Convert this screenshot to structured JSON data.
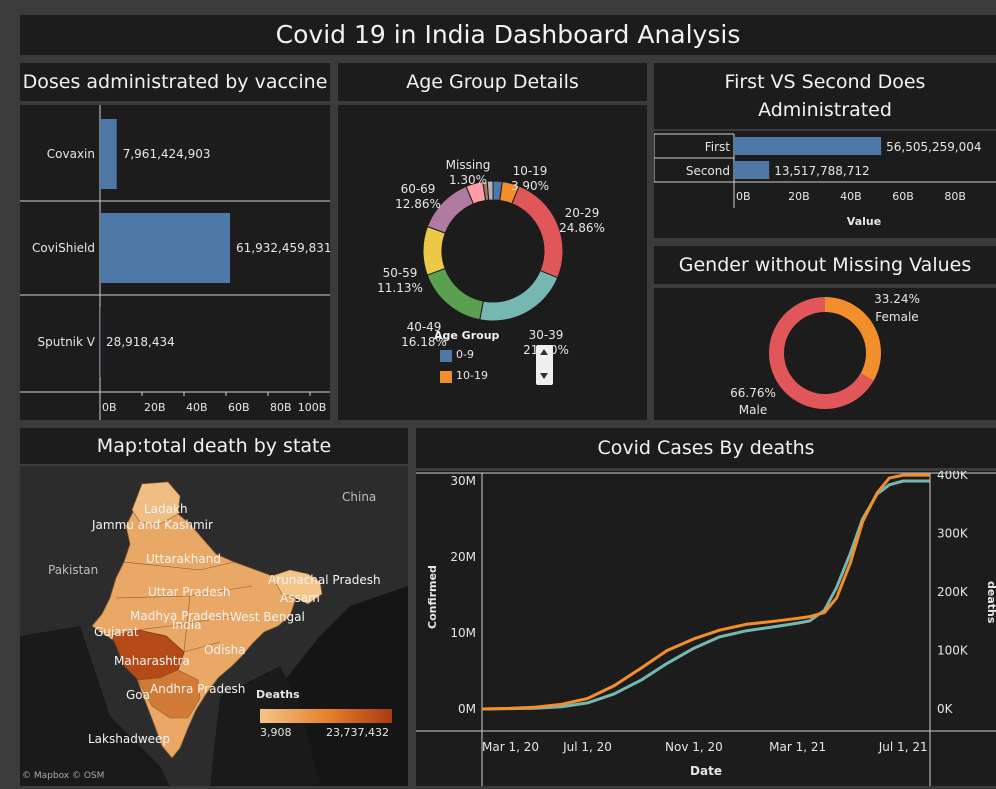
{
  "dashboard": {
    "title": "Covid 19 in India Dashboard Analysis"
  },
  "vaccine_panel": {
    "title": "Doses administrated by vaccine"
  },
  "age_panel": {
    "title": "Age Group Details",
    "legend_title": "Age Group",
    "legend_items": [
      {
        "label": "0-9",
        "color": "#4e79a7"
      },
      {
        "label": "10-19",
        "color": "#f28e2b"
      }
    ]
  },
  "dose_panel": {
    "title_line1": "First VS Second Does",
    "title_line2": "Administrated"
  },
  "gender_panel": {
    "title": "Gender without Missing Values"
  },
  "map_panel": {
    "title": "Map:total death by state",
    "legend_title": "Deaths",
    "legend_min": "3,908",
    "legend_max": "23,737,432",
    "attribution": "© Mapbox © OSM",
    "labels": [
      {
        "key": "china",
        "text": "China"
      },
      {
        "key": "ladakh",
        "text": "Ladakh"
      },
      {
        "key": "jk",
        "text": "Jammu and Kashmir"
      },
      {
        "key": "uttarakhand",
        "text": "Uttarakhand"
      },
      {
        "key": "pakistan",
        "text": "Pakistan"
      },
      {
        "key": "arunachal",
        "text": "Arunachal Pradesh"
      },
      {
        "key": "assam",
        "text": "Assam"
      },
      {
        "key": "up",
        "text": "Uttar Pradesh"
      },
      {
        "key": "mp",
        "text": "Madhya Pradesh"
      },
      {
        "key": "wb",
        "text": "West Bengal"
      },
      {
        "key": "india",
        "text": "India"
      },
      {
        "key": "gujarat",
        "text": "Gujarat"
      },
      {
        "key": "odisha",
        "text": "Odisha"
      },
      {
        "key": "maharashtra",
        "text": "Maharashtra"
      },
      {
        "key": "goa",
        "text": "Goa"
      },
      {
        "key": "ap",
        "text": "Andhra Pradesh"
      },
      {
        "key": "lakshadweep",
        "text": "Lakshadweep"
      }
    ]
  },
  "cases_panel": {
    "title": "Covid Cases By deaths"
  },
  "chart_data": [
    {
      "id": "vaccine",
      "type": "bar",
      "orientation": "horizontal",
      "categories": [
        "Covaxin",
        "CoviShield",
        "Sputnik V"
      ],
      "values": [
        7961424903,
        61932459831,
        28918434
      ],
      "value_labels": [
        "7,961,424,903",
        "61,932,459,831",
        "28,918,434"
      ],
      "xlim": [
        0,
        100000000000
      ],
      "xticks": [
        0,
        20000000000,
        40000000000,
        60000000000,
        80000000000,
        100000000000
      ],
      "xtick_labels": [
        "0B",
        "20B",
        "40B",
        "60B",
        "80B",
        "100B"
      ],
      "color": "#4e79a7"
    },
    {
      "id": "age",
      "type": "pie",
      "donut": true,
      "slices": [
        {
          "label": "0-9",
          "value": 2.1,
          "color": "#4e79a7",
          "label_text": ""
        },
        {
          "label": "10-19",
          "value": 3.9,
          "color": "#f28e2b",
          "label_text": "10-19\n3.90%"
        },
        {
          "label": "20-29",
          "value": 24.86,
          "color": "#e15759",
          "label_text": "20-29\n24.86%"
        },
        {
          "label": "30-39",
          "value": 21.5,
          "color": "#76b7b2",
          "label_text": "30-39\n21.50%"
        },
        {
          "label": "40-49",
          "value": 16.18,
          "color": "#59a14f",
          "label_text": "40-49\n16.18%"
        },
        {
          "label": "50-59",
          "value": 11.13,
          "color": "#edc948",
          "label_text": "50-59\n11.13%"
        },
        {
          "label": "60-69",
          "value": 12.86,
          "color": "#b07aa1",
          "label_text": "60-69\n12.86%"
        },
        {
          "label": "70-79",
          "value": 3.9,
          "color": "#ff9da7",
          "label_text": ""
        },
        {
          "label": "80+",
          "value": 1.0,
          "color": "#9c755f",
          "label_text": ""
        },
        {
          "label": "Missing",
          "value": 1.3,
          "color": "#bab0ac",
          "label_text": "Missing\n1.30%"
        }
      ]
    },
    {
      "id": "doses",
      "type": "bar",
      "orientation": "horizontal",
      "categories": [
        "First",
        "Second"
      ],
      "values": [
        56505259004,
        13517788712
      ],
      "value_labels": [
        "56,505,259,004",
        "13,517,788,712"
      ],
      "xlim": [
        0,
        96000000000
      ],
      "xticks": [
        0,
        20000000000,
        40000000000,
        60000000000,
        80000000000
      ],
      "xtick_labels": [
        "0B",
        "20B",
        "40B",
        "60B",
        "80B"
      ],
      "xlabel": "Value",
      "color": "#4e79a7"
    },
    {
      "id": "gender",
      "type": "pie",
      "donut": true,
      "slices": [
        {
          "label": "Female",
          "value": 33.24,
          "color": "#f28e2b",
          "pct": "33.24%"
        },
        {
          "label": "Male",
          "value": 66.76,
          "color": "#e15759",
          "pct": "66.76%"
        }
      ]
    },
    {
      "id": "cases",
      "type": "line",
      "x": [
        "2020-03-01",
        "2020-04-01",
        "2020-05-01",
        "2020-06-01",
        "2020-07-01",
        "2020-08-01",
        "2020-09-01",
        "2020-10-01",
        "2020-11-01",
        "2020-12-01",
        "2021-01-01",
        "2021-02-01",
        "2021-03-01",
        "2021-03-15",
        "2021-04-01",
        "2021-04-15",
        "2021-05-01",
        "2021-05-15",
        "2021-06-01",
        "2021-06-15",
        "2021-07-01",
        "2021-07-15",
        "2021-08-01"
      ],
      "series": [
        {
          "name": "Confirmed",
          "axis": "left",
          "color": "#76b7b2",
          "values": [
            0,
            0.05,
            0.1,
            0.3,
            0.8,
            2.0,
            3.8,
            6.0,
            8.0,
            9.5,
            10.3,
            10.8,
            11.3,
            11.6,
            13.0,
            16.0,
            20.5,
            25.0,
            28.3,
            29.5,
            30.0,
            30.0,
            30.0
          ]
        },
        {
          "name": "deaths",
          "axis": "right",
          "color": "#f28e2b",
          "values": [
            0,
            1000,
            3000,
            8000,
            18000,
            40000,
            70000,
            100000,
            120000,
            135000,
            145000,
            150000,
            155000,
            158000,
            165000,
            190000,
            250000,
            320000,
            370000,
            395000,
            400000,
            400000,
            400000
          ]
        }
      ],
      "x_ticks": [
        "2020-03-01",
        "2020-07-01",
        "2020-11-01",
        "2021-03-01",
        "2021-07-01"
      ],
      "x_tick_labels": [
        "Mar 1, 20",
        "Jul 1, 20",
        "Nov 1, 20",
        "Mar 1, 21",
        "Jul 1, 21"
      ],
      "y_ticks_left": [
        0,
        10,
        20,
        30
      ],
      "y_tick_labels_left": [
        "0M",
        "10M",
        "20M",
        "30M"
      ],
      "ylim_left": [
        0,
        30
      ],
      "y_ticks_right": [
        0,
        100000,
        200000,
        300000,
        400000
      ],
      "y_tick_labels_right": [
        "0K",
        "100K",
        "200K",
        "300K",
        "400K"
      ],
      "ylim_right": [
        0,
        390000
      ],
      "xlabel": "Date",
      "ylabel_left": "Confirmed",
      "ylabel_right": "deaths"
    }
  ]
}
